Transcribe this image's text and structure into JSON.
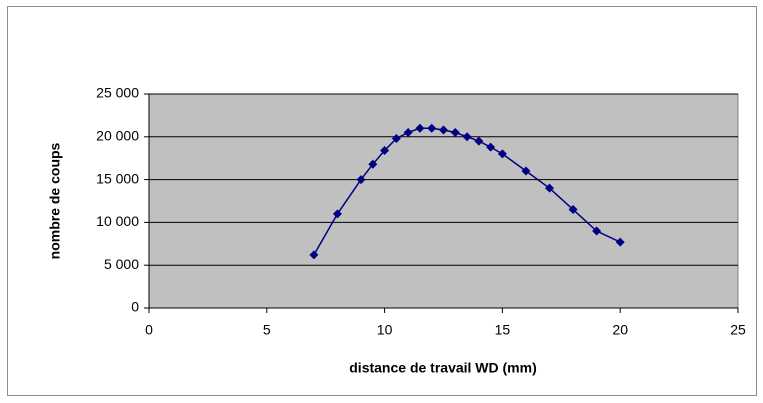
{
  "chart_data": {
    "type": "line",
    "title": "",
    "xlabel": "distance de travail WD (mm)",
    "ylabel": "nombre de coups",
    "xlim": [
      0,
      25
    ],
    "ylim": [
      0,
      25000
    ],
    "xticks": [
      0,
      5,
      10,
      15,
      20,
      25
    ],
    "yticks": [
      0,
      5000,
      10000,
      15000,
      20000,
      25000
    ],
    "ytick_labels": [
      "0",
      "5 000",
      "10 000",
      "15 000",
      "20 000",
      "25 000"
    ],
    "xtick_labels": [
      "0",
      "5",
      "10",
      "15",
      "20",
      "25"
    ],
    "grid": "horizontal",
    "legend": "none",
    "colors": {
      "plot_background": "#c0c0c0",
      "series": "#000080",
      "gridline": "#000000"
    },
    "series": [
      {
        "marker": "diamond",
        "x": [
          7,
          8,
          9,
          9.5,
          10,
          10.5,
          11,
          11.5,
          12,
          12.5,
          13,
          13.5,
          14,
          14.5,
          15,
          16,
          17,
          18,
          19,
          20
        ],
        "y": [
          6200,
          11000,
          15000,
          16800,
          18400,
          19800,
          20500,
          21000,
          21000,
          20800,
          20500,
          20000,
          19500,
          18800,
          18000,
          16000,
          14000,
          11500,
          9000,
          7700
        ]
      }
    ]
  }
}
